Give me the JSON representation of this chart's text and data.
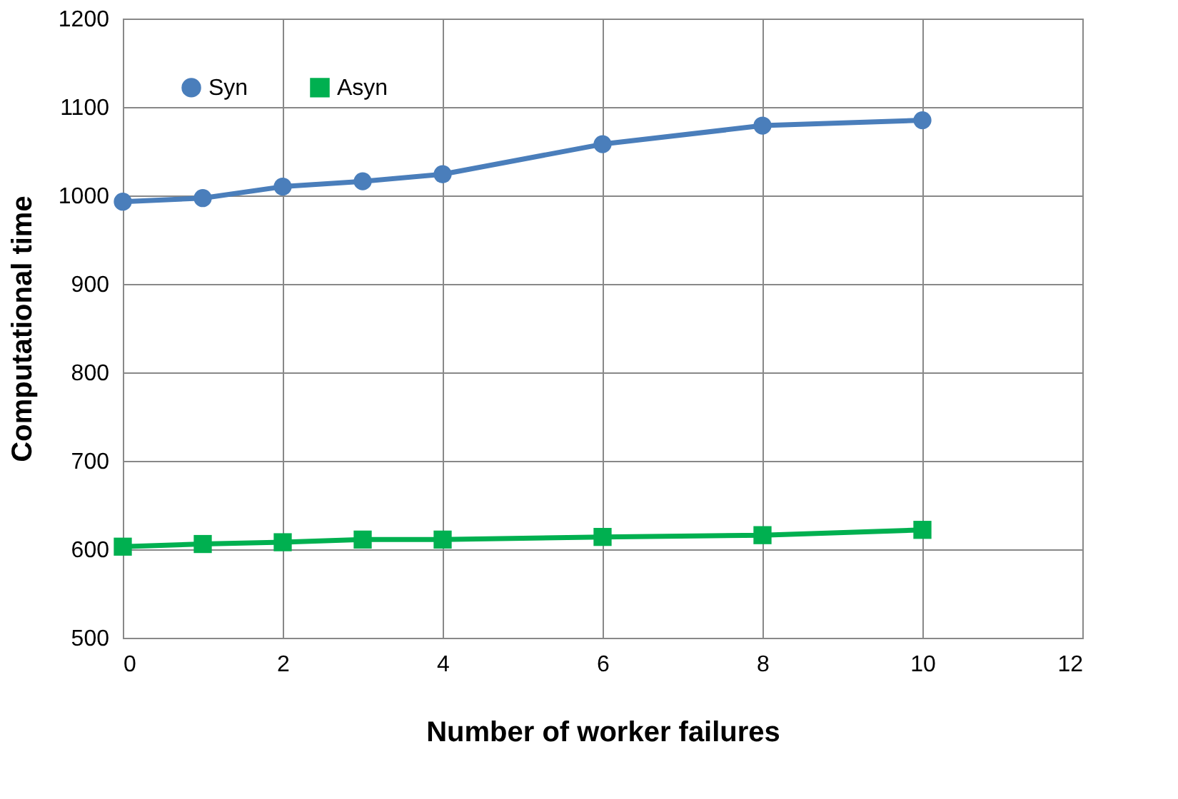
{
  "chart_data": {
    "type": "line",
    "xlabel": "Number of worker failures",
    "ylabel": "Computational time",
    "xlim": [
      0,
      12
    ],
    "xticks": [
      0,
      2,
      4,
      6,
      8,
      10,
      12
    ],
    "ylim": [
      500,
      1200
    ],
    "yticks": [
      500,
      600,
      700,
      800,
      900,
      1000,
      1100,
      1200
    ],
    "grid": true,
    "legend": "top left",
    "line_style": "solid",
    "series": [
      {
        "name": "Syn",
        "color": "#4a7ebb",
        "marker": "circle",
        "x": [
          0,
          1,
          2,
          3,
          4,
          6,
          8,
          10
        ],
        "values": [
          993,
          997,
          1010,
          1016,
          1024,
          1058,
          1079,
          1085
        ]
      },
      {
        "name": "Asyn",
        "color": "#00b050",
        "marker": "square",
        "x": [
          0,
          1,
          2,
          3,
          4,
          6,
          8,
          10
        ],
        "values": [
          603,
          606,
          608,
          611,
          611,
          614,
          616,
          622
        ]
      }
    ]
  }
}
